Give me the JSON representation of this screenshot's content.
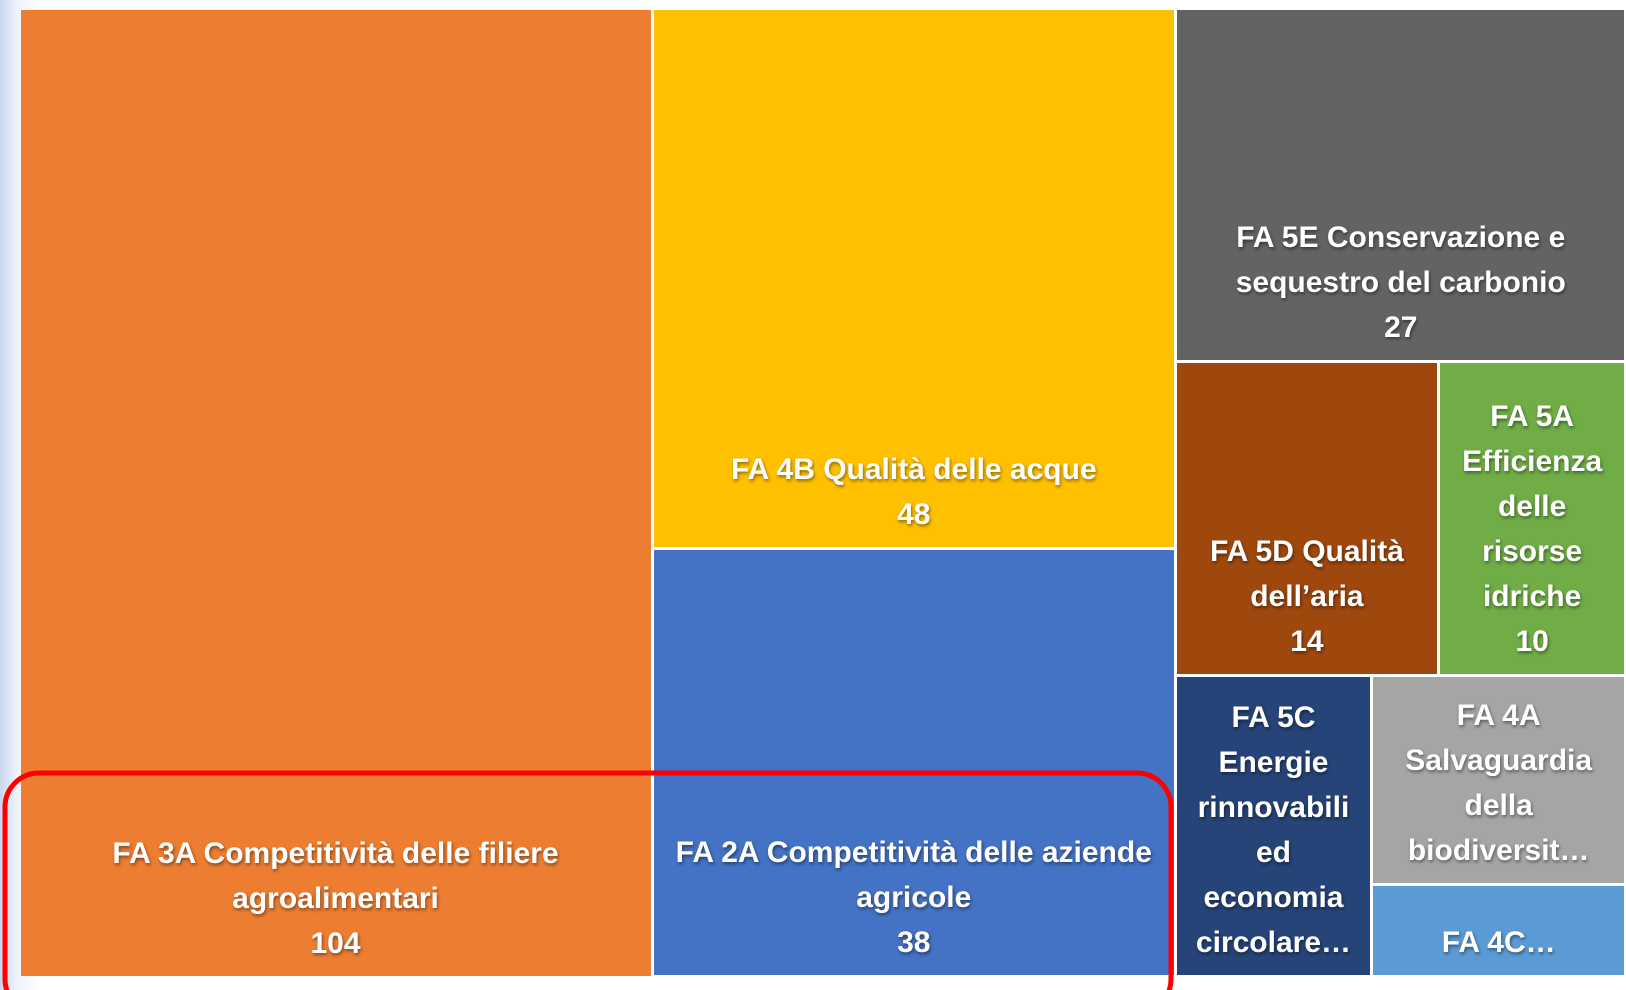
{
  "chart_data": {
    "type": "treemap",
    "categories": [
      "FA 3A Competitività delle filiere agroalimentari",
      "FA 4B Qualità delle acque",
      "FA 2A Competitività delle aziende agricole",
      "FA 5E Conservazione e sequestro del carbonio",
      "FA 5D Qualità dell’aria",
      "FA 5A Efficienza delle risorse idriche",
      "FA 5C Energie rinnovabili ed economia circolare…",
      "FA 4A Salvaguardia della biodiversit…",
      "FA 4C…"
    ],
    "values": [
      104,
      48,
      38,
      27,
      14,
      10,
      10,
      9,
      4
    ],
    "value_labels": [
      "104",
      "48",
      "38",
      "27",
      "14",
      "10",
      null,
      null,
      null
    ],
    "colors": [
      "#ED7D31",
      "#FFC000",
      "#4472C4",
      "#636363",
      "#9E480E",
      "#70AD47",
      "#264478",
      "#A5A5A5",
      "#5B9BD5"
    ]
  }
}
